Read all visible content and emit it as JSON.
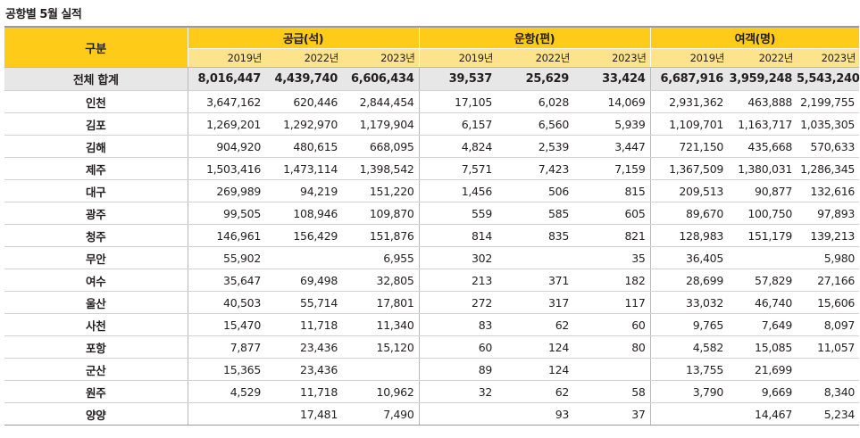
{
  "title": "공항별 5월 실적",
  "header": {
    "corner": "구분",
    "groups": [
      "공급(석)",
      "운항(편)",
      "여객(명)"
    ],
    "years": [
      "2019년",
      "2022년",
      "2023년",
      "2019년",
      "2022년",
      "2023년",
      "2019년",
      "2022년",
      "2023년"
    ]
  },
  "rows": [
    {
      "label": "전체 합계",
      "values": [
        "8,016,447",
        "4,439,740",
        "6,606,434",
        "39,537",
        "25,629",
        "33,424",
        "6,687,916",
        "3,959,248",
        "5,543,240"
      ]
    },
    {
      "label": "인천",
      "values": [
        "3,647,162",
        "620,446",
        "2,844,454",
        "17,105",
        "6,028",
        "14,069",
        "2,931,362",
        "463,888",
        "2,199,755"
      ]
    },
    {
      "label": "김포",
      "values": [
        "1,269,201",
        "1,292,970",
        "1,179,904",
        "6,157",
        "6,560",
        "5,939",
        "1,109,701",
        "1,163,717",
        "1,035,305"
      ]
    },
    {
      "label": "김해",
      "values": [
        "904,920",
        "480,615",
        "668,095",
        "4,824",
        "2,539",
        "3,447",
        "721,150",
        "435,668",
        "570,633"
      ]
    },
    {
      "label": "제주",
      "values": [
        "1,503,416",
        "1,473,114",
        "1,398,542",
        "7,571",
        "7,423",
        "7,159",
        "1,367,509",
        "1,380,031",
        "1,286,345"
      ]
    },
    {
      "label": "대구",
      "values": [
        "269,989",
        "94,219",
        "151,220",
        "1,456",
        "506",
        "815",
        "209,513",
        "90,877",
        "132,616"
      ]
    },
    {
      "label": "광주",
      "values": [
        "99,505",
        "108,946",
        "109,870",
        "559",
        "585",
        "605",
        "89,670",
        "100,750",
        "97,893"
      ]
    },
    {
      "label": "청주",
      "values": [
        "146,961",
        "156,429",
        "151,876",
        "814",
        "835",
        "821",
        "128,983",
        "151,179",
        "139,213"
      ]
    },
    {
      "label": "무안",
      "values": [
        "55,902",
        "",
        "6,955",
        "302",
        "",
        "35",
        "36,405",
        "",
        "5,980"
      ]
    },
    {
      "label": "여수",
      "values": [
        "35,647",
        "69,498",
        "32,805",
        "213",
        "371",
        "182",
        "28,699",
        "57,829",
        "27,166"
      ]
    },
    {
      "label": "울산",
      "values": [
        "40,503",
        "55,714",
        "17,801",
        "272",
        "317",
        "117",
        "33,032",
        "46,740",
        "15,606"
      ]
    },
    {
      "label": "사천",
      "values": [
        "15,470",
        "11,718",
        "11,340",
        "83",
        "62",
        "60",
        "9,765",
        "7,649",
        "8,097"
      ]
    },
    {
      "label": "포항",
      "values": [
        "7,877",
        "23,436",
        "15,120",
        "60",
        "124",
        "80",
        "4,582",
        "15,085",
        "11,057"
      ]
    },
    {
      "label": "군산",
      "values": [
        "15,365",
        "23,436",
        "",
        "89",
        "124",
        "",
        "13,755",
        "21,699",
        ""
      ]
    },
    {
      "label": "원주",
      "values": [
        "4,529",
        "11,718",
        "10,962",
        "32",
        "62",
        "58",
        "3,790",
        "9,669",
        "8,340"
      ]
    },
    {
      "label": "양양",
      "values": [
        "",
        "17,481",
        "7,490",
        "",
        "93",
        "37",
        "",
        "14,467",
        "5,234"
      ]
    }
  ]
}
